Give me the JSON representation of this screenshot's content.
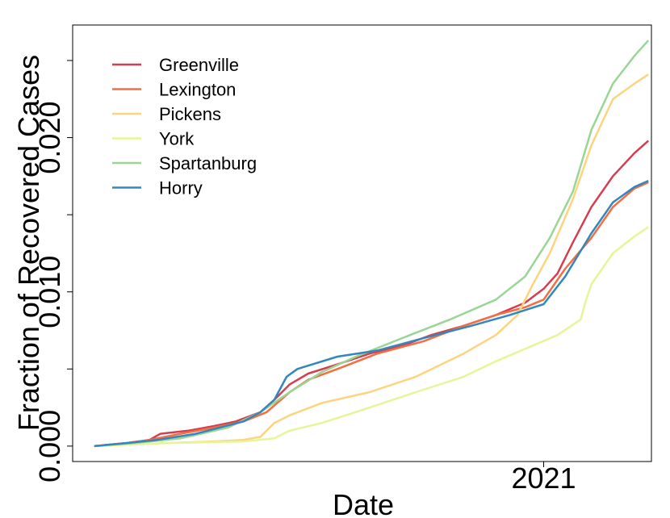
{
  "chart_data": {
    "type": "line",
    "title": "",
    "xlabel": "Date",
    "ylabel": "Fraction of Recovered Cases",
    "x_tick_labels": [
      "2021"
    ],
    "y_tick_labels": [
      "0.000",
      "0.010",
      "0.020"
    ],
    "y_ticks": [
      0.0,
      0.005,
      0.01,
      0.015,
      0.02,
      0.025
    ],
    "ylim": [
      -0.001,
      0.0273
    ],
    "xlim": [
      "2020-03-01",
      "2021-03-12"
    ],
    "legend_position": "top-left",
    "grid": false,
    "series": [
      {
        "name": "Greenville",
        "color": "#d53e4f",
        "points": [
          [
            "2020-03-15",
            0.0
          ],
          [
            "2020-04-05",
            0.0002
          ],
          [
            "2020-04-20",
            0.0004
          ],
          [
            "2020-04-27",
            0.0008
          ],
          [
            "2020-05-15",
            0.001
          ],
          [
            "2020-06-01",
            0.0013
          ],
          [
            "2020-06-15",
            0.0016
          ],
          [
            "2020-07-01",
            0.0022
          ],
          [
            "2020-07-10",
            0.003
          ],
          [
            "2020-07-20",
            0.004
          ],
          [
            "2020-08-01",
            0.0047
          ],
          [
            "2020-08-20",
            0.0053
          ],
          [
            "2020-09-10",
            0.006
          ],
          [
            "2020-10-01",
            0.0065
          ],
          [
            "2020-10-20",
            0.0072
          ],
          [
            "2020-11-10",
            0.0078
          ],
          [
            "2020-12-01",
            0.0085
          ],
          [
            "2020-12-20",
            0.0093
          ],
          [
            "2021-01-01",
            0.0102
          ],
          [
            "2021-01-10",
            0.0112
          ],
          [
            "2021-01-20",
            0.0132
          ],
          [
            "2021-02-01",
            0.0155
          ],
          [
            "2021-02-15",
            0.0175
          ],
          [
            "2021-03-01",
            0.019
          ],
          [
            "2021-03-10",
            0.0198
          ]
        ]
      },
      {
        "name": "Lexington",
        "color": "#f46d43",
        "points": [
          [
            "2020-03-15",
            0.0
          ],
          [
            "2020-04-05",
            0.0002
          ],
          [
            "2020-04-20",
            0.0004
          ],
          [
            "2020-05-10",
            0.0008
          ],
          [
            "2020-06-01",
            0.0012
          ],
          [
            "2020-06-20",
            0.0016
          ],
          [
            "2020-07-05",
            0.0022
          ],
          [
            "2020-07-20",
            0.0035
          ],
          [
            "2020-08-01",
            0.0043
          ],
          [
            "2020-08-20",
            0.005
          ],
          [
            "2020-09-15",
            0.006
          ],
          [
            "2020-10-15",
            0.0068
          ],
          [
            "2020-11-10",
            0.0078
          ],
          [
            "2020-12-01",
            0.0085
          ],
          [
            "2020-12-20",
            0.009
          ],
          [
            "2021-01-01",
            0.0095
          ],
          [
            "2021-01-15",
            0.0115
          ],
          [
            "2021-02-01",
            0.0135
          ],
          [
            "2021-02-15",
            0.0155
          ],
          [
            "2021-03-01",
            0.0167
          ],
          [
            "2021-03-10",
            0.0171
          ]
        ]
      },
      {
        "name": "Pickens",
        "color": "#fdd47e",
        "points": [
          [
            "2020-03-15",
            0.0
          ],
          [
            "2020-05-01",
            0.0002
          ],
          [
            "2020-06-01",
            0.0003
          ],
          [
            "2020-06-20",
            0.0004
          ],
          [
            "2020-07-01",
            0.0006
          ],
          [
            "2020-07-10",
            0.0015
          ],
          [
            "2020-07-20",
            0.002
          ],
          [
            "2020-08-10",
            0.0028
          ],
          [
            "2020-09-10",
            0.0035
          ],
          [
            "2020-10-10",
            0.0045
          ],
          [
            "2020-11-10",
            0.006
          ],
          [
            "2020-12-01",
            0.0072
          ],
          [
            "2020-12-15",
            0.0085
          ],
          [
            "2020-12-25",
            0.0105
          ],
          [
            "2021-01-05",
            0.0125
          ],
          [
            "2021-01-20",
            0.016
          ],
          [
            "2021-02-01",
            0.0195
          ],
          [
            "2021-02-15",
            0.0225
          ],
          [
            "2021-03-01",
            0.0235
          ],
          [
            "2021-03-10",
            0.0241
          ]
        ]
      },
      {
        "name": "York",
        "color": "#e6f598",
        "points": [
          [
            "2020-03-15",
            0.0
          ],
          [
            "2020-05-01",
            0.0002
          ],
          [
            "2020-06-20",
            0.0003
          ],
          [
            "2020-07-10",
            0.0005
          ],
          [
            "2020-07-20",
            0.001
          ],
          [
            "2020-08-10",
            0.0015
          ],
          [
            "2020-09-10",
            0.0025
          ],
          [
            "2020-10-10",
            0.0035
          ],
          [
            "2020-11-10",
            0.0045
          ],
          [
            "2020-12-01",
            0.0055
          ],
          [
            "2020-12-20",
            0.0063
          ],
          [
            "2021-01-10",
            0.0072
          ],
          [
            "2021-01-25",
            0.0082
          ],
          [
            "2021-01-28",
            0.0093
          ],
          [
            "2021-02-01",
            0.0105
          ],
          [
            "2021-02-15",
            0.0125
          ],
          [
            "2021-03-01",
            0.0136
          ],
          [
            "2021-03-10",
            0.0142
          ]
        ]
      },
      {
        "name": "Spartanburg",
        "color": "#99d594",
        "points": [
          [
            "2020-03-15",
            0.0
          ],
          [
            "2020-04-10",
            0.0002
          ],
          [
            "2020-05-10",
            0.0005
          ],
          [
            "2020-06-10",
            0.0012
          ],
          [
            "2020-07-01",
            0.0022
          ],
          [
            "2020-07-20",
            0.0035
          ],
          [
            "2020-08-10",
            0.0048
          ],
          [
            "2020-09-01",
            0.0058
          ],
          [
            "2020-10-01",
            0.007
          ],
          [
            "2020-11-01",
            0.0082
          ],
          [
            "2020-12-01",
            0.0095
          ],
          [
            "2020-12-20",
            0.011
          ],
          [
            "2021-01-05",
            0.0135
          ],
          [
            "2021-01-20",
            0.0165
          ],
          [
            "2021-02-01",
            0.0205
          ],
          [
            "2021-02-15",
            0.0235
          ],
          [
            "2021-03-01",
            0.0253
          ],
          [
            "2021-03-10",
            0.0263
          ]
        ]
      },
      {
        "name": "Horry",
        "color": "#3288bd",
        "points": [
          [
            "2020-03-15",
            0.0
          ],
          [
            "2020-04-05",
            0.0002
          ],
          [
            "2020-04-25",
            0.0004
          ],
          [
            "2020-05-20",
            0.0008
          ],
          [
            "2020-06-20",
            0.0016
          ],
          [
            "2020-07-01",
            0.0022
          ],
          [
            "2020-07-10",
            0.003
          ],
          [
            "2020-07-18",
            0.0045
          ],
          [
            "2020-07-25",
            0.005
          ],
          [
            "2020-08-20",
            0.0058
          ],
          [
            "2020-09-15",
            0.0062
          ],
          [
            "2020-10-15",
            0.007
          ],
          [
            "2020-11-15",
            0.0078
          ],
          [
            "2020-12-10",
            0.0085
          ],
          [
            "2021-01-01",
            0.0092
          ],
          [
            "2021-01-15",
            0.011
          ],
          [
            "2021-02-01",
            0.0138
          ],
          [
            "2021-02-15",
            0.0158
          ],
          [
            "2021-03-01",
            0.0168
          ],
          [
            "2021-03-10",
            0.0172
          ]
        ]
      }
    ]
  }
}
